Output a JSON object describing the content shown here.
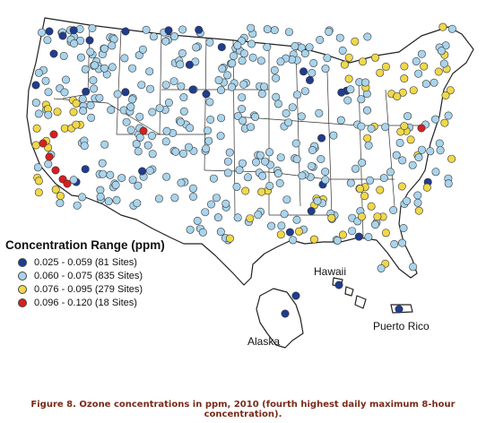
{
  "legend": {
    "title": "Concentration Range (ppm)",
    "items": [
      {
        "label": "0.025 - 0.059 (81 Sites)",
        "color": "#1f3c8f"
      },
      {
        "label": "0.060 - 0.075 (835 Sites)",
        "color": "#a9d4ec"
      },
      {
        "label": "0.076 - 0.095 (279 Sites)",
        "color": "#f0d84a"
      },
      {
        "label": "0.096 - 0.120 (18 Sites)",
        "color": "#d81f1f"
      }
    ]
  },
  "places": {
    "hawaii": "Hawaii",
    "alaska": "Alaska",
    "puerto_rico": "Puerto Rico"
  },
  "caption": "Figure 8. Ozone concentrations in ppm, 2010 (fourth highest daily maximum 8-hour concentration)."
}
